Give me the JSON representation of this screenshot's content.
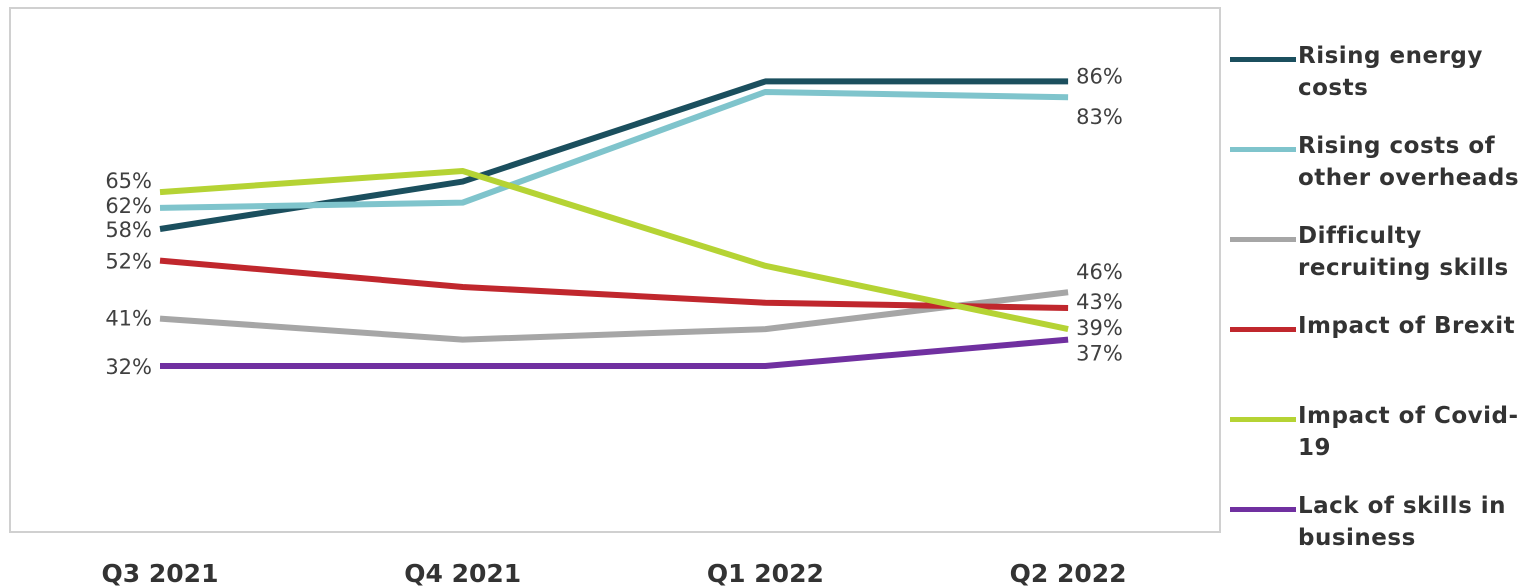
{
  "chart_data": {
    "type": "line",
    "categories": [
      "Q3 2021",
      "Q4 2021",
      "Q1 2022",
      "Q2 2022"
    ],
    "series": [
      {
        "name": "Rising energy costs",
        "color": "#1b4f5e",
        "values": [
          58,
          67,
          86,
          86
        ],
        "value_labels": [
          "58%",
          null,
          null,
          "86%"
        ]
      },
      {
        "name": "Rising costs of other overheads",
        "color": "#7fc4cc",
        "values": [
          62,
          63,
          84,
          83
        ],
        "value_labels": [
          "62%",
          null,
          null,
          "83%"
        ]
      },
      {
        "name": "Difficulty recruiting skills",
        "color": "#a6a6a6",
        "values": [
          41,
          37,
          39,
          46
        ],
        "value_labels": [
          "41%",
          null,
          null,
          "46%"
        ]
      },
      {
        "name": "Impact of Brexit",
        "color": "#c0272d",
        "values": [
          52,
          47,
          44,
          43
        ],
        "value_labels": [
          "52%",
          null,
          null,
          "43%"
        ]
      },
      {
        "name": "Impact of Covid-19",
        "color": "#b5d334",
        "values": [
          65,
          69,
          51,
          39
        ],
        "value_labels": [
          "65%",
          null,
          null,
          "39%"
        ]
      },
      {
        "name": "Lack of skills in business",
        "color": "#7030a0",
        "values": [
          32,
          32,
          32,
          37
        ],
        "value_labels": [
          "32%",
          null,
          null,
          "37%"
        ]
      }
    ]
  }
}
